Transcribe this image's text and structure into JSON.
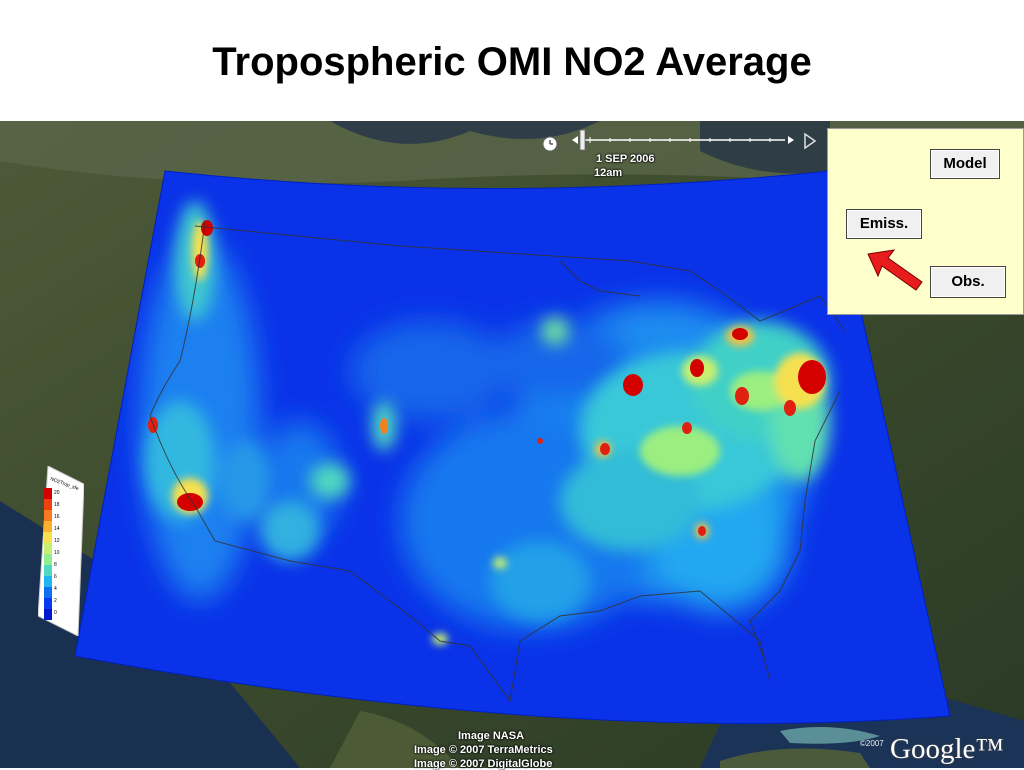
{
  "slide": {
    "title": "Tropospheric OMI NO2 Average"
  },
  "time_slider": {
    "date": "1 SEP 2006",
    "time": "12am"
  },
  "legend_panel": {
    "model_label": "Model",
    "emiss_label": "Emiss.",
    "obs_label": "Obs.",
    "arrow_color": "#e81c1c",
    "background": "#ffffcc"
  },
  "colorbar": {
    "title": "NO2Trop_sfe",
    "colors": [
      "#d40000",
      "#f04010",
      "#f87a20",
      "#fbb030",
      "#f6e050",
      "#c8f070",
      "#8fee90",
      "#50d8c0",
      "#20b4f0",
      "#1070f0",
      "#0a3af0",
      "#0018d0"
    ]
  },
  "map_attribution": {
    "line1": "Image NASA",
    "line2": "Image © 2007 TerraMetrics",
    "line3": "Image © 2007 DigitalGlobe",
    "copyright_year": "©2007",
    "logo": "Google™"
  },
  "map_hotspots": [
    {
      "name": "seattle",
      "level": "high"
    },
    {
      "name": "portland",
      "level": "high"
    },
    {
      "name": "san-francisco",
      "level": "high"
    },
    {
      "name": "los-angeles",
      "level": "high"
    },
    {
      "name": "denver",
      "level": "medium"
    },
    {
      "name": "chicago",
      "level": "high"
    },
    {
      "name": "detroit",
      "level": "high"
    },
    {
      "name": "toronto",
      "level": "high"
    },
    {
      "name": "pittsburgh",
      "level": "high"
    },
    {
      "name": "new-york",
      "level": "high"
    },
    {
      "name": "atlanta",
      "level": "high"
    }
  ]
}
